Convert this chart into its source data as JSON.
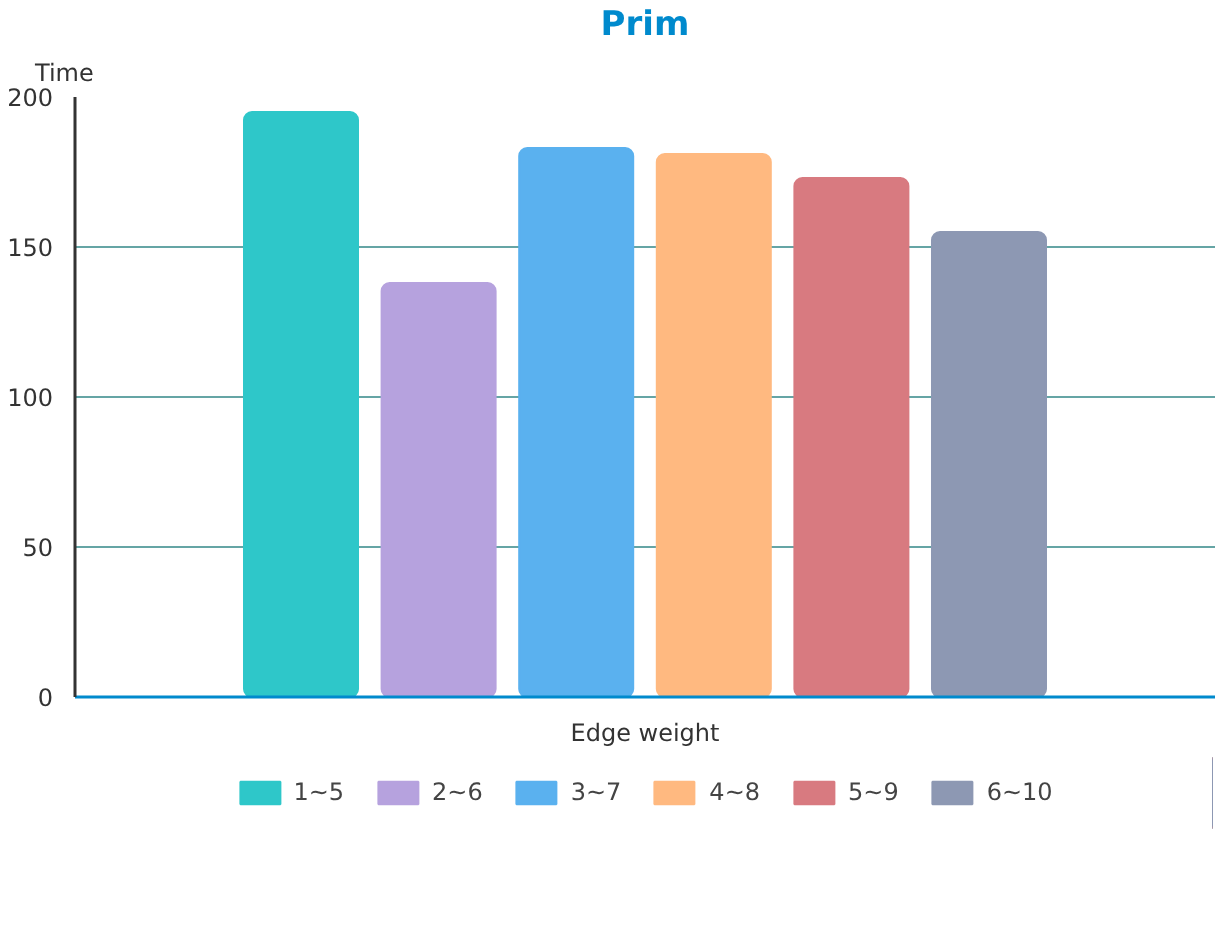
{
  "chart_data": {
    "type": "bar",
    "title": "Prim",
    "ylabel": "Time",
    "categories": [
      "Edge weight"
    ],
    "series": [
      {
        "name": "1~5",
        "color": "#2ec7c9",
        "values": [
          195
        ]
      },
      {
        "name": "2~6",
        "color": "#b6a2de",
        "values": [
          138
        ]
      },
      {
        "name": "3~7",
        "color": "#5ab1ef",
        "values": [
          183
        ]
      },
      {
        "name": "4~8",
        "color": "#ffb980",
        "values": [
          181
        ]
      },
      {
        "name": "5~9",
        "color": "#d87a80",
        "values": [
          173
        ]
      },
      {
        "name": "6~10",
        "color": "#8d98b3",
        "values": [
          155
        ]
      }
    ],
    "ylim": [
      0,
      200
    ],
    "yticks": [
      0,
      50,
      100,
      150,
      200
    ],
    "grid": "y",
    "legend": "bottom"
  }
}
